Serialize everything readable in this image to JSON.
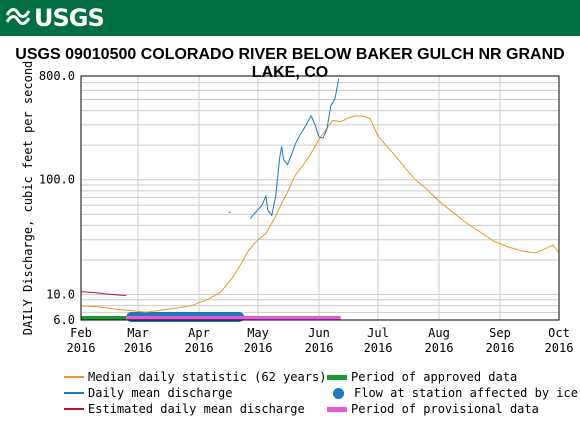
{
  "header": {
    "logo_text": "USGS",
    "banner_color": "#006f41"
  },
  "title": "USGS 09010500 COLORADO RIVER BELOW BAKER GULCH NR GRAND LAKE, CO",
  "chart_data": {
    "type": "line",
    "ylabel": "DAILY Discharge, cubic feet per second",
    "yscale": "log",
    "ylim": [
      6,
      800
    ],
    "y_ticks": [
      "6.0",
      "10.0",
      "100.0",
      "800.0"
    ],
    "x_range": [
      "2016-02-01",
      "2016-10-01"
    ],
    "x_ticks": [
      {
        "month": "Feb",
        "year": "2016",
        "date": "2016-02-01"
      },
      {
        "month": "Mar",
        "year": "2016",
        "date": "2016-03-01"
      },
      {
        "month": "Apr",
        "year": "2016",
        "date": "2016-04-01"
      },
      {
        "month": "May",
        "year": "2016",
        "date": "2016-05-01"
      },
      {
        "month": "Jun",
        "year": "2016",
        "date": "2016-06-01"
      },
      {
        "month": "Jul",
        "year": "2016",
        "date": "2016-07-01"
      },
      {
        "month": "Aug",
        "year": "2016",
        "date": "2016-08-01"
      },
      {
        "month": "Sep",
        "year": "2016",
        "date": "2016-09-01"
      },
      {
        "month": "Oct",
        "year": "2016",
        "date": "2016-10-01"
      }
    ],
    "grid": true,
    "series": [
      {
        "name": "Median daily statistic (62 years)",
        "color": "#e69a1e",
        "points": [
          [
            "2016-02-01",
            8.0
          ],
          [
            "2016-02-10",
            7.8
          ],
          [
            "2016-02-20",
            7.4
          ],
          [
            "2016-02-28",
            7.2
          ],
          [
            "2016-03-05",
            7.0
          ],
          [
            "2016-03-12",
            7.3
          ],
          [
            "2016-03-20",
            7.6
          ],
          [
            "2016-03-28",
            8.0
          ],
          [
            "2016-04-05",
            9.0
          ],
          [
            "2016-04-12",
            10.5
          ],
          [
            "2016-04-18",
            14
          ],
          [
            "2016-04-22",
            18
          ],
          [
            "2016-04-26",
            24
          ],
          [
            "2016-05-01",
            30
          ],
          [
            "2016-05-05",
            34
          ],
          [
            "2016-05-10",
            48
          ],
          [
            "2016-05-13",
            62
          ],
          [
            "2016-05-16",
            78
          ],
          [
            "2016-05-20",
            110
          ],
          [
            "2016-05-24",
            135
          ],
          [
            "2016-05-28",
            170
          ],
          [
            "2016-06-01",
            225
          ],
          [
            "2016-06-05",
            280
          ],
          [
            "2016-06-08",
            330
          ],
          [
            "2016-06-12",
            320
          ],
          [
            "2016-06-16",
            345
          ],
          [
            "2016-06-20",
            360
          ],
          [
            "2016-06-24",
            355
          ],
          [
            "2016-06-27",
            340
          ],
          [
            "2016-07-01",
            240
          ],
          [
            "2016-07-05",
            200
          ],
          [
            "2016-07-10",
            160
          ],
          [
            "2016-07-15",
            125
          ],
          [
            "2016-07-20",
            100
          ],
          [
            "2016-07-25",
            85
          ],
          [
            "2016-08-01",
            65
          ],
          [
            "2016-08-08",
            52
          ],
          [
            "2016-08-15",
            42
          ],
          [
            "2016-08-22",
            35
          ],
          [
            "2016-08-29",
            29
          ],
          [
            "2016-09-05",
            26
          ],
          [
            "2016-09-12",
            24
          ],
          [
            "2016-09-19",
            23
          ],
          [
            "2016-09-24",
            25
          ],
          [
            "2016-09-28",
            27
          ],
          [
            "2016-10-01",
            23
          ]
        ]
      },
      {
        "name": "Daily mean discharge",
        "color": "#1b7bbd",
        "points": [
          [
            "2016-04-27",
            46
          ],
          [
            "2016-05-03",
            60
          ],
          [
            "2016-05-05",
            72
          ],
          [
            "2016-05-06",
            54
          ],
          [
            "2016-05-08",
            49
          ],
          [
            "2016-05-10",
            72
          ],
          [
            "2016-05-12",
            155
          ],
          [
            "2016-05-13",
            195
          ],
          [
            "2016-05-14",
            150
          ],
          [
            "2016-05-16",
            135
          ],
          [
            "2016-05-18",
            165
          ],
          [
            "2016-05-20",
            205
          ],
          [
            "2016-05-22",
            240
          ],
          [
            "2016-05-25",
            290
          ],
          [
            "2016-05-28",
            360
          ],
          [
            "2016-05-30",
            300
          ],
          [
            "2016-06-01",
            235
          ],
          [
            "2016-06-03",
            230
          ],
          [
            "2016-06-05",
            275
          ],
          [
            "2016-06-07",
            440
          ],
          [
            "2016-06-09",
            500
          ],
          [
            "2016-06-10",
            610
          ],
          [
            "2016-06-11",
            760
          ]
        ]
      },
      {
        "name": "Estimated daily mean discharge",
        "color": "#c0102b",
        "points": [
          [
            "2016-02-01",
            10.6
          ],
          [
            "2016-02-08",
            10.4
          ],
          [
            "2016-02-14",
            10.1
          ],
          [
            "2016-02-20",
            9.9
          ],
          [
            "2016-02-24",
            9.8
          ]
        ]
      }
    ],
    "period_bars": [
      {
        "name": "Period of approved data",
        "color": "#1a9a2e",
        "start": "2016-02-01",
        "end": "2016-02-24"
      },
      {
        "name": "Flow at station affected by ice",
        "color": "#1b7bbd",
        "start": "2016-02-24",
        "end": "2016-04-24"
      },
      {
        "name": "Period of provisional data",
        "color": "#e659d8",
        "start": "2016-02-24",
        "end": "2016-06-12"
      }
    ]
  },
  "legend": [
    {
      "label": "Median daily statistic (62 years)",
      "color": "#e69a1e",
      "kind": "line"
    },
    {
      "label": "Period of approved data",
      "color": "#1a9a2e",
      "kind": "bar"
    },
    {
      "label": "Daily mean discharge",
      "color": "#1b7bbd",
      "kind": "line"
    },
    {
      "label": "Flow at station affected by ice",
      "color": "#1b7bbd",
      "kind": "dot"
    },
    {
      "label": "Estimated daily mean discharge",
      "color": "#c0102b",
      "kind": "line"
    },
    {
      "label": "Period of provisional data",
      "color": "#e659d8",
      "kind": "bar"
    }
  ]
}
